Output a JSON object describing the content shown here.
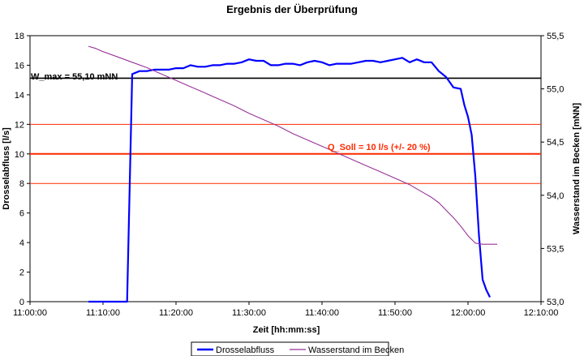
{
  "chart_data": {
    "type": "line",
    "title": "Ergebnis der Überprüfung",
    "xlabel": "Zeit [hh:mm:ss]",
    "ylabel_left": "Drosselabfluss [l/s]",
    "ylabel_right": "Wasserstand im Becken [mNN]",
    "x_ticks": [
      "11:00:00",
      "11:10:00",
      "11:20:00",
      "11:30:00",
      "11:40:00",
      "11:50:00",
      "12:00:00",
      "12:10:00"
    ],
    "xlim_minutes": [
      0,
      70
    ],
    "ylim_left": [
      0,
      18
    ],
    "y_ticks_left": [
      "0",
      "2",
      "4",
      "6",
      "8",
      "10",
      "12",
      "14",
      "16",
      "18"
    ],
    "ylim_right": [
      53.0,
      55.5
    ],
    "y_ticks_right": [
      "53,0",
      "53,5",
      "54,0",
      "54,5",
      "55,0",
      "55,5"
    ],
    "grid": false,
    "legend_position": "bottom",
    "annotations": {
      "w_max": {
        "label": "W_max = 55,10 mNN",
        "value_mNN": 55.1,
        "color": "#000000"
      },
      "q_soll": {
        "label": "Q_Soll = 10 l/s (+/- 20 %)",
        "value": 10,
        "lower": 8,
        "upper": 12,
        "color": "#ff2a00"
      }
    },
    "series": [
      {
        "name": "Drosselabfluss",
        "axis": "left",
        "color": "#0000ff",
        "x": [
          8,
          10,
          12,
          13.3,
          14.0,
          15.0,
          16,
          17,
          18,
          19,
          20,
          21,
          22,
          23,
          24,
          25,
          26,
          27,
          28,
          29,
          30,
          31,
          32,
          33,
          34,
          35,
          36,
          37,
          38,
          39,
          40,
          41,
          42,
          43,
          44,
          45,
          46,
          47,
          48,
          49,
          50,
          51,
          52,
          53,
          54,
          55,
          56,
          57,
          58,
          59,
          59.5,
          60,
          60.5,
          61,
          61.5,
          62,
          62.5,
          63,
          63.5,
          64
        ],
        "values": [
          0,
          0,
          0,
          0,
          15.4,
          15.6,
          15.6,
          15.7,
          15.7,
          15.7,
          15.8,
          15.8,
          16.0,
          15.9,
          15.9,
          16.0,
          16.0,
          16.1,
          16.1,
          16.2,
          16.4,
          16.3,
          16.3,
          16.0,
          16.0,
          16.1,
          16.1,
          16.0,
          16.2,
          16.3,
          16.2,
          16.0,
          16.1,
          16.1,
          16.1,
          16.2,
          16.3,
          16.3,
          16.2,
          16.3,
          16.4,
          16.5,
          16.2,
          16.4,
          16.2,
          16.2,
          15.6,
          15.2,
          14.5,
          14.4,
          13.3,
          12.5,
          11.3,
          8.5,
          4.5,
          1.5,
          0.8,
          0.3,
          null,
          null
        ]
      },
      {
        "name": "Wasserstand im Becken",
        "axis": "right",
        "color": "#993399",
        "x": [
          8,
          9,
          10,
          12,
          14,
          16,
          18,
          20,
          22,
          24,
          26,
          28,
          30,
          32,
          34,
          36,
          38,
          40,
          42,
          44,
          46,
          48,
          50,
          52,
          54,
          55,
          56,
          57,
          58,
          59,
          60,
          61,
          62,
          63,
          64
        ],
        "values": [
          55.4,
          55.38,
          55.35,
          55.3,
          55.25,
          55.2,
          55.14,
          55.08,
          55.02,
          54.96,
          54.9,
          54.84,
          54.77,
          54.71,
          54.65,
          54.58,
          54.52,
          54.46,
          54.4,
          54.34,
          54.28,
          54.22,
          54.16,
          54.1,
          54.02,
          53.98,
          53.93,
          53.86,
          53.79,
          53.71,
          53.62,
          53.55,
          53.54,
          53.54,
          53.54
        ]
      }
    ]
  }
}
